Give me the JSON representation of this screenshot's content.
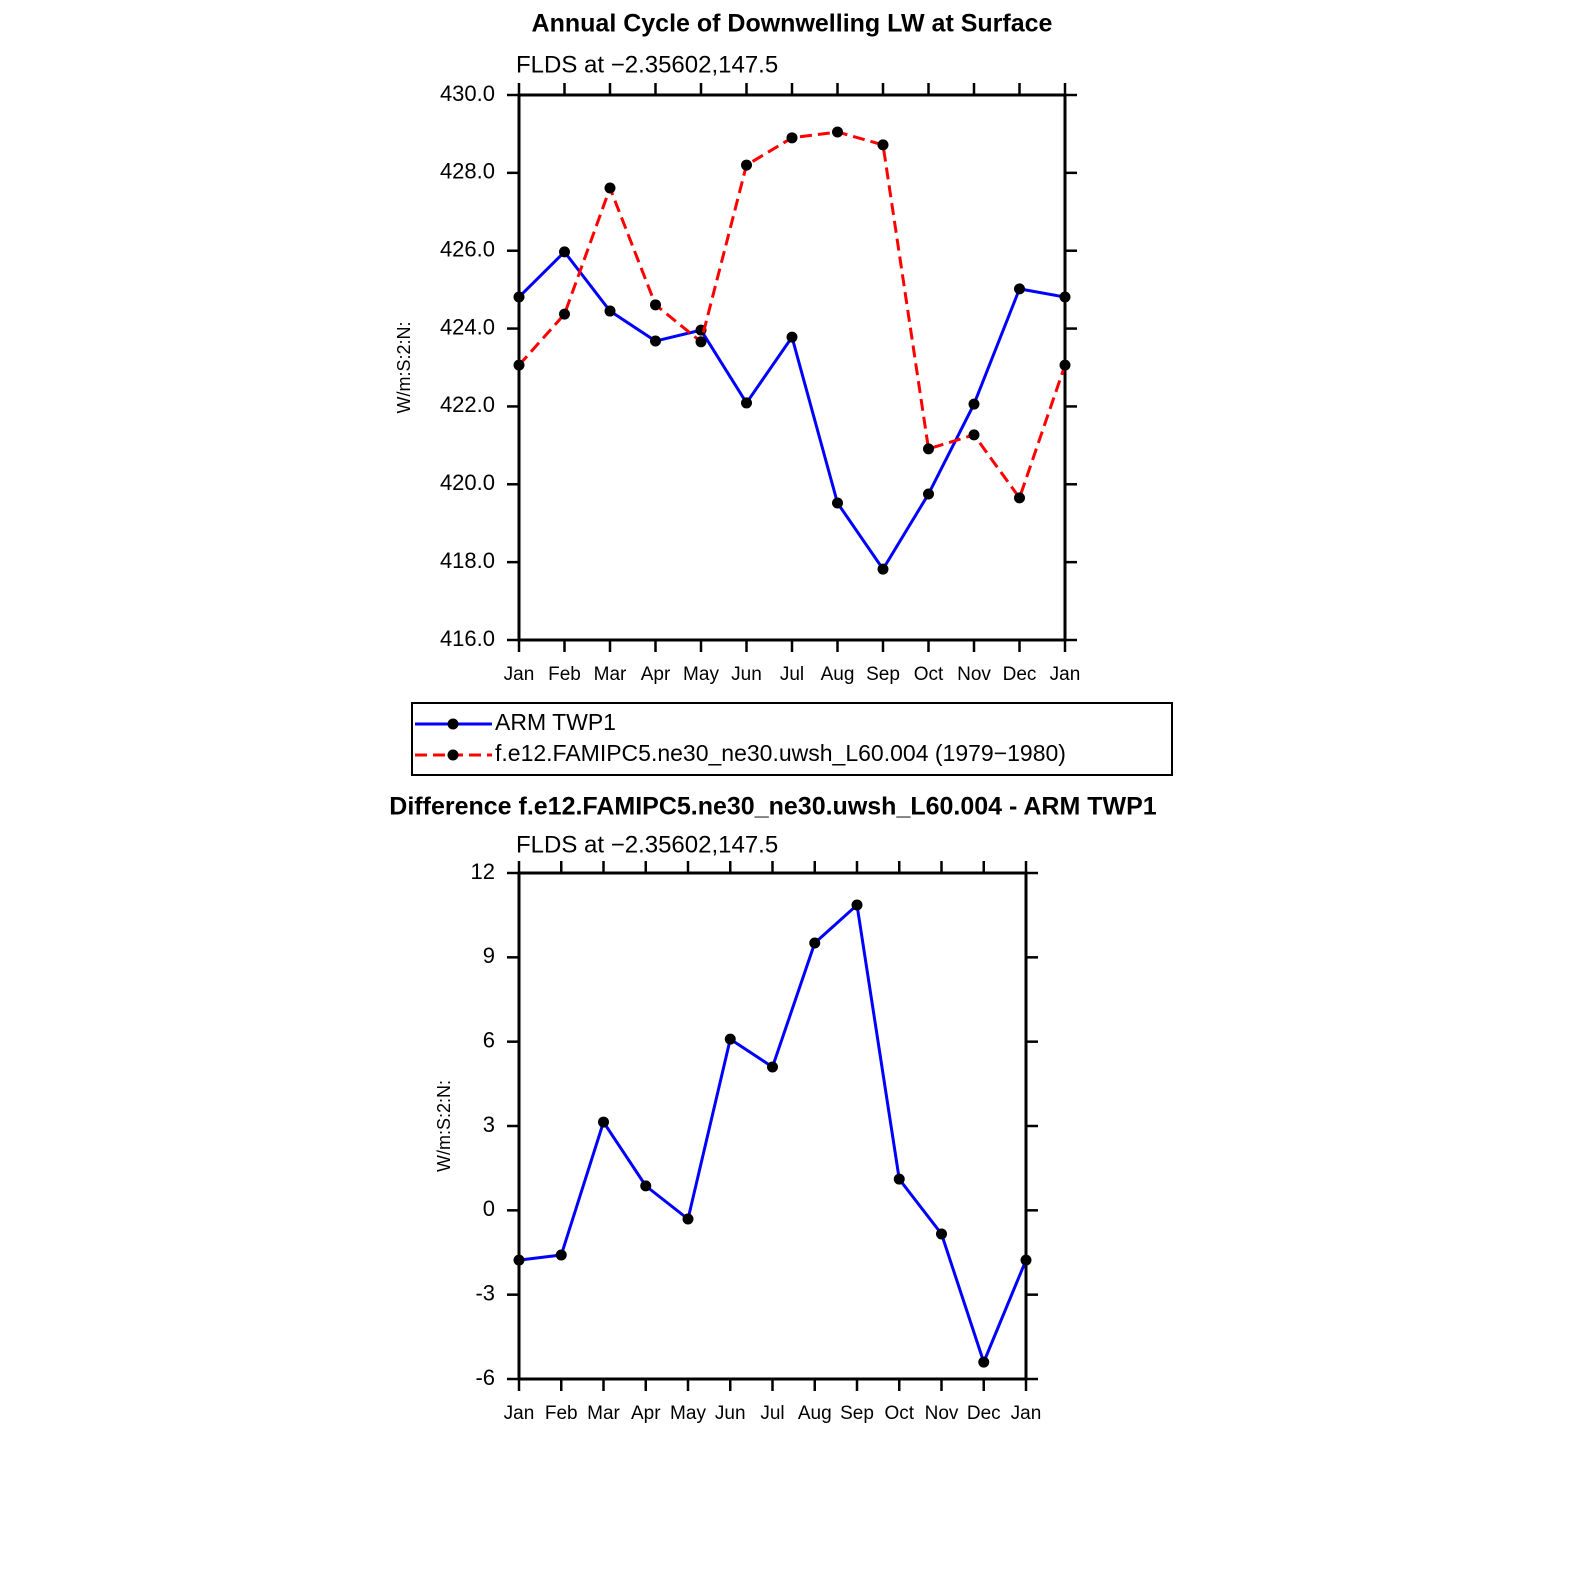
{
  "chart_data": [
    {
      "type": "line",
      "title": "Annual Cycle of Downwelling LW at Surface",
      "subtitle": "FLDS at −2.35602,147.5",
      "y_label": "W/m:S:2:N:",
      "categories": [
        "Jan",
        "Feb",
        "Mar",
        "Apr",
        "May",
        "Jun",
        "Jul",
        "Aug",
        "Sep",
        "Oct",
        "Nov",
        "Dec",
        "Jan"
      ],
      "ylim": [
        416,
        430
      ],
      "yticks": [
        {
          "value": 416,
          "label": "416.0"
        },
        {
          "value": 418,
          "label": "418.0"
        },
        {
          "value": 420,
          "label": "420.0"
        },
        {
          "value": 422,
          "label": "422.0"
        },
        {
          "value": 424,
          "label": "424.0"
        },
        {
          "value": 426,
          "label": "426.0"
        },
        {
          "value": 428,
          "label": "428.0"
        },
        {
          "value": 430,
          "label": "430.0"
        }
      ],
      "legend": "below",
      "series": [
        {
          "name": "ARM TWP1",
          "color": "#0000ff",
          "line_style": "solid",
          "values": [
            424.81,
            425.97,
            424.45,
            423.68,
            423.96,
            422.09,
            423.78,
            419.52,
            417.82,
            419.75,
            422.06,
            425.02,
            424.81
          ]
        },
        {
          "name": "f.e12.FAMIPC5.ne30_ne30.uwsh_L60.004 (1979−1980)",
          "color": "#ff0000",
          "line_style": "dashed",
          "values": [
            423.06,
            424.37,
            427.61,
            424.61,
            423.66,
            428.2,
            428.9,
            429.05,
            428.72,
            420.91,
            421.27,
            419.65,
            423.06
          ]
        }
      ]
    },
    {
      "type": "line",
      "title": "Difference f.e12.FAMIPC5.ne30_ne30.uwsh_L60.004 - ARM TWP1",
      "subtitle": "FLDS at −2.35602,147.5",
      "y_label": "W/m:S:2:N:",
      "categories": [
        "Jan",
        "Feb",
        "Mar",
        "Apr",
        "May",
        "Jun",
        "Jul",
        "Aug",
        "Sep",
        "Oct",
        "Nov",
        "Dec",
        "Jan"
      ],
      "ylim": [
        -6,
        12
      ],
      "yticks": [
        -6,
        -3,
        0,
        3,
        6,
        9,
        12
      ],
      "series": [
        {
          "color": "#0000ff",
          "line_style": "solid",
          "values": [
            -1.77,
            -1.59,
            3.14,
            0.87,
            -0.31,
            6.09,
            5.1,
            9.51,
            10.86,
            1.11,
            -0.84,
            -5.4,
            -1.77
          ]
        }
      ]
    }
  ]
}
